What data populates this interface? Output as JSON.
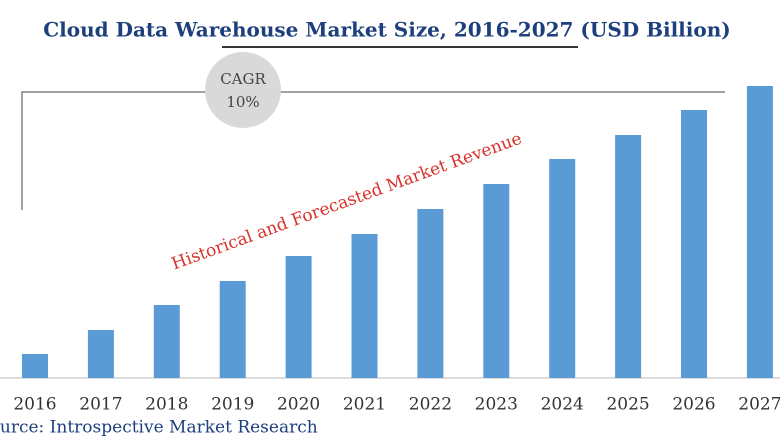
{
  "chart_data": {
    "type": "bar",
    "title": "Cloud Data Warehouse Market Size, 2016-2027 (USD Billion)",
    "cagr_label": "CAGR",
    "cagr_value": "10%",
    "annotation": "Historical and Forecasted Market Revenue",
    "source": "Source: Introspective Market Research",
    "categories": [
      "2016",
      "2017",
      "2018",
      "2019",
      "2020",
      "2021",
      "2022",
      "2023",
      "2024",
      "2025",
      "2026",
      "2027"
    ],
    "values": [
      24,
      48,
      73,
      97,
      122,
      144,
      169,
      194,
      219,
      243,
      268,
      292
    ],
    "color": "#5b9bd5",
    "ylim": [
      0,
      292
    ]
  }
}
